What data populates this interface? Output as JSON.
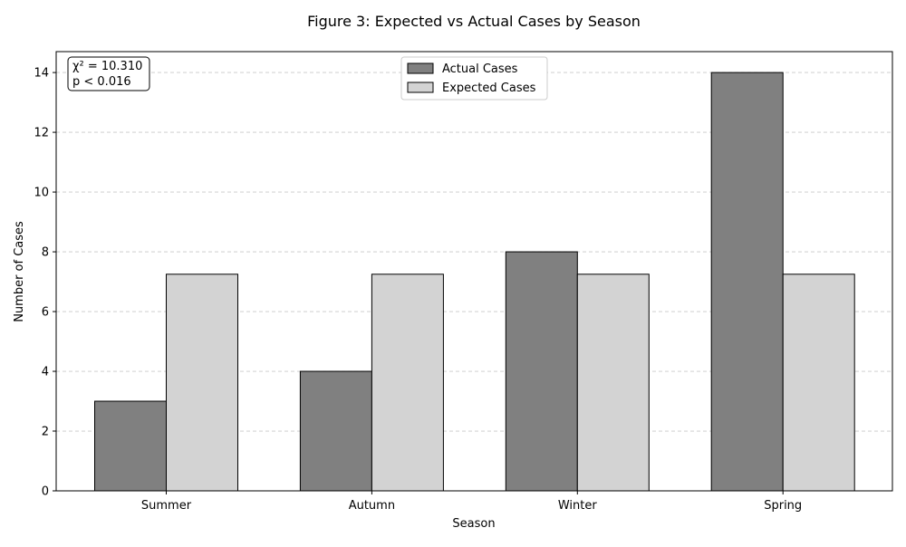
{
  "chart_data": {
    "type": "bar",
    "title": "Figure 3: Expected vs Actual Cases by Season",
    "xlabel": "Season",
    "ylabel": "Number of Cases",
    "categories": [
      "Summer",
      "Autumn",
      "Winter",
      "Spring"
    ],
    "series": [
      {
        "name": "Actual Cases",
        "values": [
          3,
          4,
          8,
          14
        ],
        "color": "#808080"
      },
      {
        "name": "Expected Cases",
        "values": [
          7.25,
          7.25,
          7.25,
          7.25
        ],
        "color": "#d3d3d3"
      }
    ],
    "ylim": [
      0,
      14.7
    ],
    "yticks": [
      0,
      2,
      4,
      6,
      8,
      10,
      12,
      14
    ],
    "grid": "y-dashed",
    "legend_position": "top-center",
    "annotation": {
      "line1": "χ² = 10.310",
      "line2": "p < 0.016"
    }
  }
}
